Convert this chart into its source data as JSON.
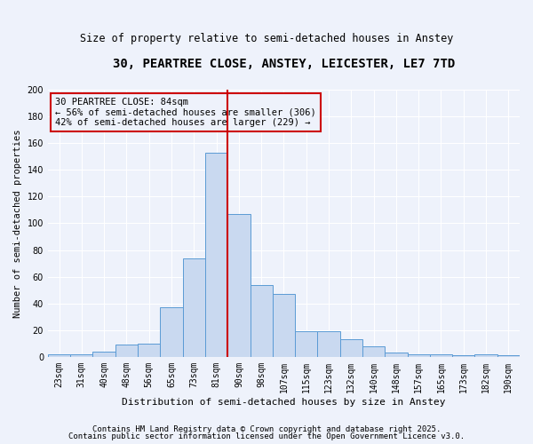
{
  "title": "30, PEARTREE CLOSE, ANSTEY, LEICESTER, LE7 7TD",
  "subtitle": "Size of property relative to semi-detached houses in Anstey",
  "xlabel": "Distribution of semi-detached houses by size in Anstey",
  "ylabel": "Number of semi-detached properties",
  "footnote1": "Contains HM Land Registry data © Crown copyright and database right 2025.",
  "footnote2": "Contains public sector information licensed under the Open Government Licence v3.0.",
  "bar_labels": [
    "23sqm",
    "31sqm",
    "40sqm",
    "48sqm",
    "56sqm",
    "65sqm",
    "73sqm",
    "81sqm",
    "90sqm",
    "98sqm",
    "107sqm",
    "115sqm",
    "123sqm",
    "132sqm",
    "140sqm",
    "148sqm",
    "157sqm",
    "165sqm",
    "173sqm",
    "182sqm",
    "190sqm"
  ],
  "bar_values": [
    2,
    2,
    4,
    9,
    10,
    37,
    74,
    153,
    107,
    54,
    47,
    19,
    19,
    13,
    8,
    3,
    2,
    2,
    1,
    2,
    1
  ],
  "bar_color": "#c9d9f0",
  "bar_edge_color": "#5b9bd5",
  "vline_x": 7.5,
  "vline_color": "#cc0000",
  "annotation_title": "30 PEARTREE CLOSE: 84sqm",
  "annotation_line2": "← 56% of semi-detached houses are smaller (306)",
  "annotation_line3": "42% of semi-detached houses are larger (229) →",
  "annotation_box_color": "#cc0000",
  "ylim": [
    0,
    200
  ],
  "background_color": "#eef2fb",
  "grid_color": "#ffffff",
  "title_fontsize": 10,
  "subtitle_fontsize": 8.5,
  "xlabel_fontsize": 8,
  "ylabel_fontsize": 7.5,
  "footnote_fontsize": 6.5,
  "tick_fontsize": 7,
  "annotation_fontsize": 7.5
}
